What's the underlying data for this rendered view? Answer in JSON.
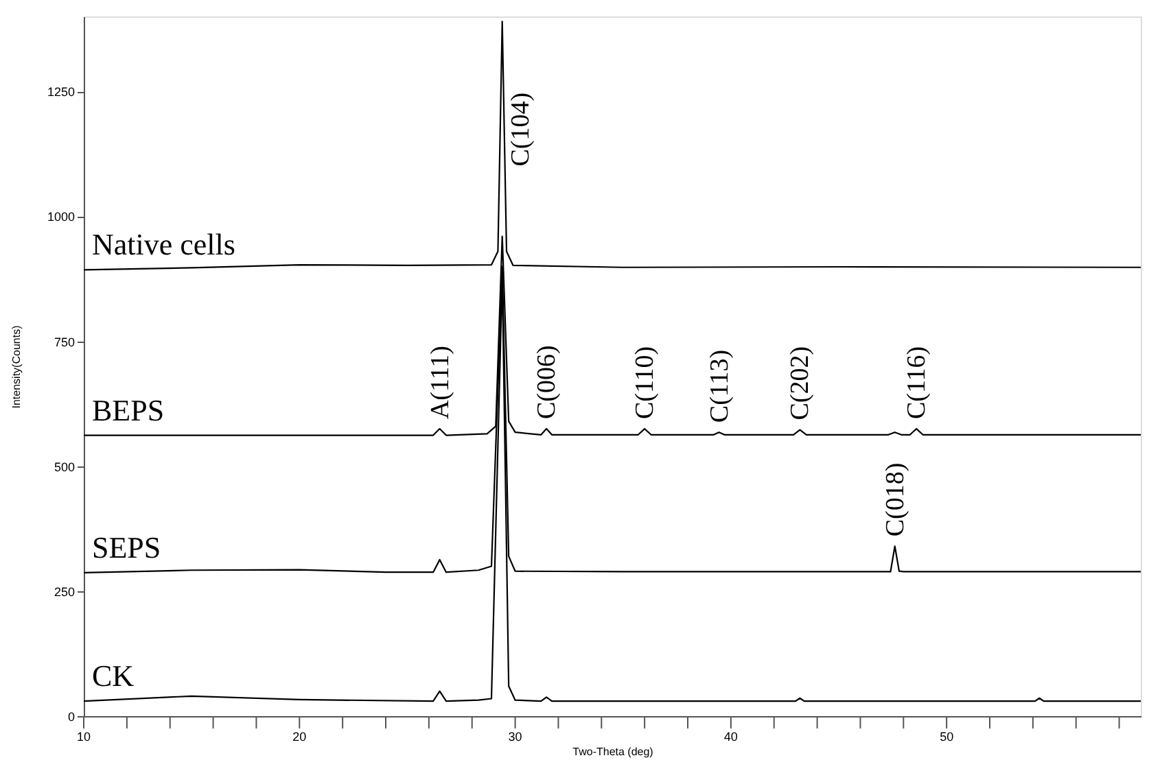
{
  "chart_data": {
    "type": "line",
    "xlabel": "Two-Theta (deg)",
    "ylabel": "Intensity(Counts)",
    "xlim": [
      10,
      59
    ],
    "ylim": [
      0,
      1400
    ],
    "xticks": [
      10,
      {
        "value": 12,
        "label": null
      },
      {
        "value": 14,
        "label": null
      },
      {
        "value": 16,
        "label": null
      },
      {
        "value": 18,
        "label": null
      },
      20,
      {
        "value": 22,
        "label": null
      },
      {
        "value": 24,
        "label": null
      },
      {
        "value": 26,
        "label": null
      },
      {
        "value": 28,
        "label": null
      },
      30,
      {
        "value": 32,
        "label": null
      },
      {
        "value": 34,
        "label": null
      },
      {
        "value": 36,
        "label": null
      },
      {
        "value": 38,
        "label": null
      },
      40,
      {
        "value": 42,
        "label": null
      },
      {
        "value": 44,
        "label": null
      },
      {
        "value": 46,
        "label": null
      },
      {
        "value": 48,
        "label": null
      },
      50,
      {
        "value": 52,
        "label": null
      },
      {
        "value": 54,
        "label": null
      },
      {
        "value": 56,
        "label": null
      },
      {
        "value": 58,
        "label": null
      }
    ],
    "yticks": [
      0,
      250,
      500,
      750,
      1000,
      1250
    ],
    "grid": false,
    "marker": "none",
    "line_style": "solid",
    "series": [
      {
        "name": "Native cells",
        "color": "#000000",
        "x": [
          10,
          15,
          20,
          25,
          28.9,
          29.2,
          29.4,
          29.6,
          29.9,
          35,
          45,
          59
        ],
        "values": [
          893,
          897,
          903,
          902,
          903,
          930,
          1390,
          930,
          902,
          898,
          899,
          898
        ]
      },
      {
        "name": "BEPS",
        "color": "#000000",
        "x": [
          10,
          26.2,
          26.5,
          26.8,
          28.7,
          29.1,
          29.4,
          29.7,
          30.0,
          31.2,
          31.45,
          31.7,
          35.7,
          36.0,
          36.3,
          39.2,
          39.45,
          39.7,
          42.9,
          43.2,
          43.5,
          47.3,
          47.6,
          47.9,
          48.3,
          48.6,
          48.9,
          59
        ],
        "values": [
          562,
          562,
          575,
          562,
          565,
          580,
          960,
          590,
          568,
          563,
          575,
          563,
          563,
          575,
          563,
          563,
          568,
          563,
          563,
          573,
          563,
          563,
          568,
          563,
          563,
          575,
          563,
          563
        ]
      },
      {
        "name": "SEPS",
        "color": "#000000",
        "x": [
          10,
          15,
          20,
          24,
          26.2,
          26.5,
          26.8,
          28.3,
          28.9,
          29.4,
          29.7,
          30.0,
          35,
          47.4,
          47.6,
          47.8,
          48,
          59
        ],
        "values": [
          287,
          292,
          293,
          288,
          288,
          313,
          288,
          292,
          300,
          900,
          320,
          290,
          289,
          289,
          340,
          290,
          289,
          289
        ]
      },
      {
        "name": "CK",
        "color": "#000000",
        "x": [
          10,
          15,
          20,
          26.2,
          26.5,
          26.8,
          28.3,
          28.9,
          29.4,
          29.7,
          30,
          31.2,
          31.45,
          31.7,
          43.0,
          43.2,
          43.4,
          54.1,
          54.3,
          54.5,
          59
        ],
        "values": [
          30,
          40,
          33,
          30,
          50,
          30,
          32,
          35,
          880,
          60,
          32,
          30,
          38,
          30,
          30,
          36,
          30,
          30,
          36,
          30,
          30
        ]
      }
    ],
    "annotations": [
      {
        "text": "C(104)",
        "x": 29.4,
        "y": 1100
      },
      {
        "text": "A(111)",
        "x": 26.5,
        "y": 575
      },
      {
        "text": "C(006)",
        "x": 31.45,
        "y": 575
      },
      {
        "text": "C(110)",
        "x": 36.0,
        "y": 575
      },
      {
        "text": "C(113)",
        "x": 39.45,
        "y": 568
      },
      {
        "text": "C(202)",
        "x": 43.2,
        "y": 573
      },
      {
        "text": "C(116)",
        "x": 48.6,
        "y": 575
      },
      {
        "text": "C(018)",
        "x": 47.6,
        "y": 340
      }
    ]
  }
}
